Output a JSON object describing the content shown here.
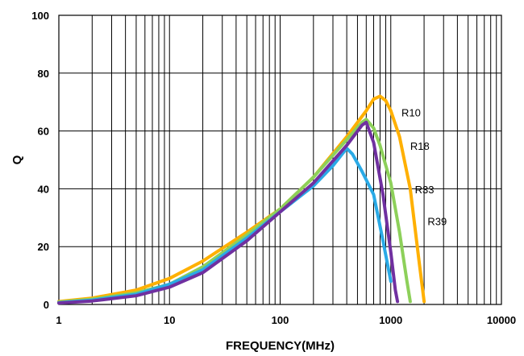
{
  "chart_data": {
    "type": "line",
    "title": "",
    "xlabel": "FREQUENCY(MHz)",
    "ylabel": "Q",
    "x_scale": "log",
    "xlim": [
      1,
      10000
    ],
    "ylim": [
      0,
      100
    ],
    "grid": true,
    "legend": "none",
    "x_ticks": [
      1,
      10,
      100,
      1000,
      10000
    ],
    "x_tick_labels": [
      "1",
      "10",
      "100",
      "1000",
      "10000"
    ],
    "y_ticks": [
      0,
      20,
      40,
      60,
      80,
      100
    ],
    "y_tick_labels": [
      "0",
      "20",
      "40",
      "60",
      "80",
      "100"
    ],
    "series": [
      {
        "name": "R10",
        "color": "#FFB000",
        "label": "R10",
        "points": [
          [
            1,
            1
          ],
          [
            2,
            2.2
          ],
          [
            5,
            5
          ],
          [
            10,
            9
          ],
          [
            20,
            15
          ],
          [
            50,
            25
          ],
          [
            100,
            33
          ],
          [
            200,
            44
          ],
          [
            400,
            58
          ],
          [
            600,
            67
          ],
          [
            700,
            71
          ],
          [
            800,
            72
          ],
          [
            900,
            70.5
          ],
          [
            1000,
            67
          ],
          [
            1200,
            58
          ],
          [
            1500,
            40
          ],
          [
            1800,
            15
          ],
          [
            2000,
            1
          ]
        ]
      },
      {
        "name": "R18",
        "color": "#8DD05A",
        "label": "R18",
        "points": [
          [
            1,
            0.8
          ],
          [
            2,
            1.8
          ],
          [
            5,
            4
          ],
          [
            10,
            7
          ],
          [
            20,
            13
          ],
          [
            50,
            24
          ],
          [
            100,
            33
          ],
          [
            200,
            44
          ],
          [
            400,
            57
          ],
          [
            550,
            63
          ],
          [
            600,
            64
          ],
          [
            700,
            61
          ],
          [
            800,
            55
          ],
          [
            1000,
            42
          ],
          [
            1200,
            25
          ],
          [
            1400,
            8
          ],
          [
            1500,
            1
          ]
        ]
      },
      {
        "name": "R33",
        "color": "#2AAAE6",
        "label": "R33",
        "points": [
          [
            1,
            0.6
          ],
          [
            2,
            1.5
          ],
          [
            5,
            3.5
          ],
          [
            10,
            7
          ],
          [
            20,
            12
          ],
          [
            50,
            23
          ],
          [
            100,
            32
          ],
          [
            200,
            41
          ],
          [
            300,
            48
          ],
          [
            400,
            54
          ],
          [
            450,
            52
          ],
          [
            550,
            46
          ],
          [
            700,
            38
          ],
          [
            850,
            22
          ],
          [
            1000,
            8
          ]
        ]
      },
      {
        "name": "R39",
        "color": "#7030A0",
        "label": "R39",
        "points": [
          [
            1,
            0.5
          ],
          [
            2,
            1.2
          ],
          [
            5,
            3
          ],
          [
            10,
            6
          ],
          [
            20,
            11
          ],
          [
            50,
            22
          ],
          [
            100,
            32
          ],
          [
            200,
            42
          ],
          [
            400,
            55
          ],
          [
            550,
            62
          ],
          [
            600,
            63
          ],
          [
            700,
            56
          ],
          [
            850,
            38
          ],
          [
            1000,
            18
          ],
          [
            1100,
            5
          ],
          [
            1150,
            1
          ]
        ]
      }
    ]
  }
}
